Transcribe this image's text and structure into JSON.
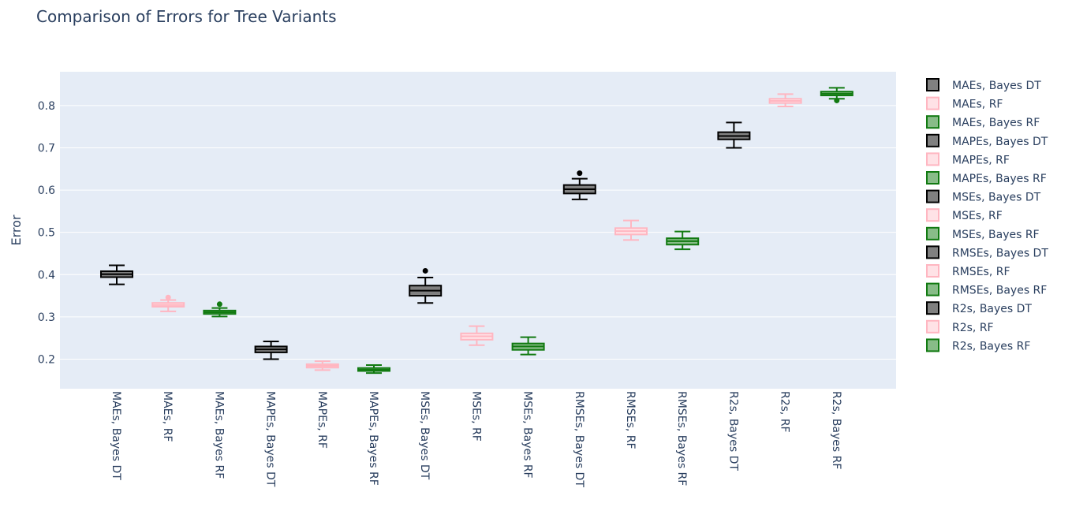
{
  "chart_data": {
    "type": "box",
    "title": "Comparison of Errors for Tree Variants",
    "xlabel": "",
    "ylabel": "Error",
    "ylim": [
      0.13,
      0.88
    ],
    "yticks": [
      0.2,
      0.3,
      0.4,
      0.5,
      0.6,
      0.7,
      0.8
    ],
    "ytick_labels": [
      "0.2",
      "0.3",
      "0.4",
      "0.5",
      "0.6",
      "0.7",
      "0.8"
    ],
    "grid": true,
    "legend_position": "right",
    "colors": {
      "plot_bg": "#e5ecf6",
      "grid": "#ffffff",
      "text": "#2a3f5f",
      "Bayes DT": {
        "line": "#000000",
        "fill": "#808080"
      },
      "RF": {
        "line": "#ffb6c1",
        "fill": "#ffe2e6"
      },
      "Bayes RF": {
        "line": "#117a11",
        "fill": "#88bc88"
      }
    },
    "categories": [
      "MAEs, Bayes DT",
      "MAEs, RF",
      "MAEs, Bayes RF",
      "MAPEs, Bayes DT",
      "MAPEs, RF",
      "MAPEs, Bayes RF",
      "MSEs, Bayes DT",
      "MSEs, RF",
      "MSEs, Bayes RF",
      "RMSEs, Bayes DT",
      "RMSEs, RF",
      "RMSEs, Bayes RF",
      "R2s, Bayes DT",
      "R2s, RF",
      "R2s, Bayes RF"
    ],
    "series": [
      {
        "name": "MAEs, Bayes DT",
        "model": "Bayes DT",
        "min": 0.377,
        "q1": 0.394,
        "median": 0.401,
        "q3": 0.408,
        "max": 0.422,
        "outliers": []
      },
      {
        "name": "MAEs, RF",
        "model": "RF",
        "min": 0.313,
        "q1": 0.324,
        "median": 0.328,
        "q3": 0.333,
        "max": 0.34,
        "outliers": [
          0.346
        ]
      },
      {
        "name": "MAEs, Bayes RF",
        "model": "Bayes RF",
        "min": 0.301,
        "q1": 0.307,
        "median": 0.311,
        "q3": 0.315,
        "max": 0.321,
        "outliers": [
          0.33
        ]
      },
      {
        "name": "MAPEs, Bayes DT",
        "model": "Bayes DT",
        "min": 0.2,
        "q1": 0.216,
        "median": 0.223,
        "q3": 0.23,
        "max": 0.242,
        "outliers": []
      },
      {
        "name": "MAPEs, RF",
        "model": "RF",
        "min": 0.174,
        "q1": 0.18,
        "median": 0.184,
        "q3": 0.188,
        "max": 0.195,
        "outliers": []
      },
      {
        "name": "MAPEs, Bayes RF",
        "model": "Bayes RF",
        "min": 0.167,
        "q1": 0.172,
        "median": 0.175,
        "q3": 0.179,
        "max": 0.186,
        "outliers": []
      },
      {
        "name": "MSEs, Bayes DT",
        "model": "Bayes DT",
        "min": 0.333,
        "q1": 0.35,
        "median": 0.362,
        "q3": 0.374,
        "max": 0.393,
        "outliers": [
          0.409
        ]
      },
      {
        "name": "MSEs, RF",
        "model": "RF",
        "min": 0.233,
        "q1": 0.246,
        "median": 0.254,
        "q3": 0.261,
        "max": 0.278,
        "outliers": []
      },
      {
        "name": "MSEs, Bayes RF",
        "model": "Bayes RF",
        "min": 0.211,
        "q1": 0.222,
        "median": 0.23,
        "q3": 0.237,
        "max": 0.252,
        "outliers": []
      },
      {
        "name": "RMSEs, Bayes DT",
        "model": "Bayes DT",
        "min": 0.578,
        "q1": 0.592,
        "median": 0.602,
        "q3": 0.612,
        "max": 0.627,
        "outliers": [
          0.64
        ]
      },
      {
        "name": "RMSEs, RF",
        "model": "RF",
        "min": 0.482,
        "q1": 0.495,
        "median": 0.503,
        "q3": 0.51,
        "max": 0.528,
        "outliers": []
      },
      {
        "name": "RMSEs, Bayes RF",
        "model": "Bayes RF",
        "min": 0.46,
        "q1": 0.471,
        "median": 0.479,
        "q3": 0.486,
        "max": 0.502,
        "outliers": []
      },
      {
        "name": "R2s, Bayes DT",
        "model": "Bayes DT",
        "min": 0.7,
        "q1": 0.72,
        "median": 0.728,
        "q3": 0.737,
        "max": 0.76,
        "outliers": []
      },
      {
        "name": "R2s, RF",
        "model": "RF",
        "min": 0.798,
        "q1": 0.806,
        "median": 0.811,
        "q3": 0.816,
        "max": 0.827,
        "outliers": []
      },
      {
        "name": "R2s, Bayes RF",
        "model": "Bayes RF",
        "min": 0.816,
        "q1": 0.824,
        "median": 0.828,
        "q3": 0.833,
        "max": 0.842,
        "outliers": [
          0.812
        ]
      }
    ]
  }
}
